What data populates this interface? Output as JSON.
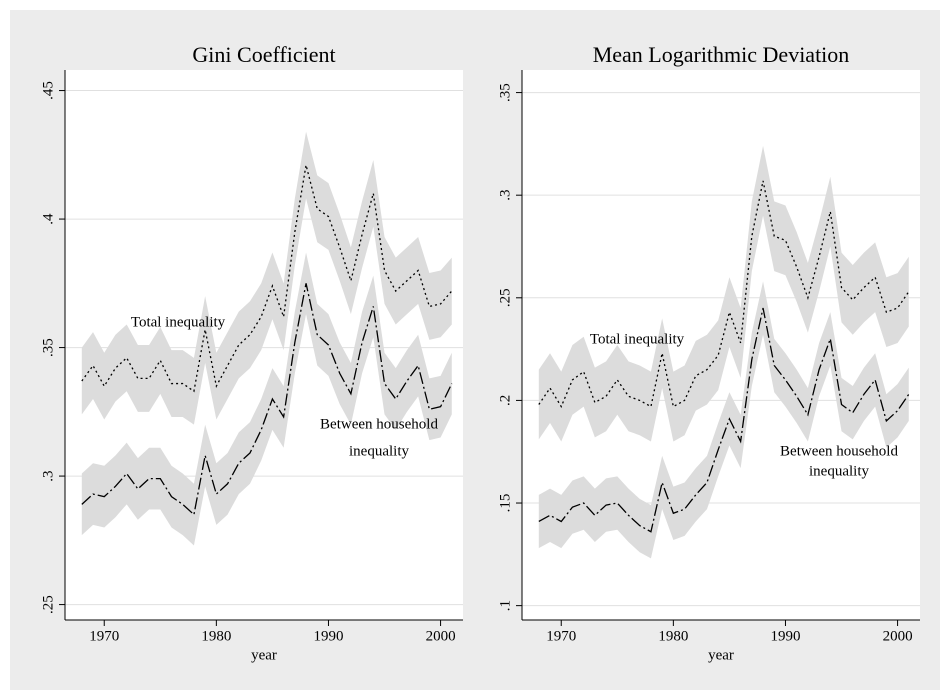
{
  "chart_data": [
    {
      "type": "line",
      "title": "Gini Coefficient",
      "x_label": "year",
      "x": [
        1968,
        1969,
        1970,
        1971,
        1972,
        1973,
        1974,
        1975,
        1976,
        1977,
        1978,
        1979,
        1980,
        1981,
        1982,
        1983,
        1984,
        1985,
        1986,
        1987,
        1988,
        1989,
        1990,
        1991,
        1992,
        1993,
        1994,
        1995,
        1996,
        1997,
        1998,
        1999,
        2000,
        2001
      ],
      "xlim": [
        1966.5,
        2002
      ],
      "xticks": [
        1970,
        1980,
        1990,
        2000
      ],
      "ylim": [
        0.244,
        0.458
      ],
      "yticks": [
        {
          "value": 0.25,
          "label": ".25"
        },
        {
          "value": 0.3,
          "label": ".3"
        },
        {
          "value": 0.35,
          "label": ".35"
        },
        {
          "value": 0.4,
          "label": ".4"
        },
        {
          "value": 0.45,
          "label": ".45"
        }
      ],
      "grid": true,
      "band_color": "#dcdcdc",
      "line_color": "#000000",
      "series": [
        {
          "dash": "2,3",
          "error": 0.013,
          "values": [
            0.337,
            0.343,
            0.335,
            0.342,
            0.346,
            0.338,
            0.338,
            0.345,
            0.336,
            0.336,
            0.333,
            0.357,
            0.335,
            0.343,
            0.351,
            0.355,
            0.362,
            0.374,
            0.362,
            0.395,
            0.421,
            0.404,
            0.401,
            0.389,
            0.376,
            0.394,
            0.41,
            0.38,
            0.372,
            0.376,
            0.38,
            0.366,
            0.367,
            0.372
          ]
        },
        {
          "dash": "12,3,2,3",
          "error": 0.012,
          "values": [
            0.289,
            0.293,
            0.292,
            0.296,
            0.301,
            0.295,
            0.299,
            0.299,
            0.292,
            0.289,
            0.285,
            0.308,
            0.293,
            0.297,
            0.305,
            0.309,
            0.318,
            0.33,
            0.323,
            0.352,
            0.375,
            0.355,
            0.351,
            0.34,
            0.332,
            0.352,
            0.366,
            0.336,
            0.33,
            0.337,
            0.343,
            0.326,
            0.327,
            0.336
          ]
        }
      ],
      "annotations": [
        {
          "lines": [
            "Total inequality"
          ]
        },
        {
          "lines": [
            "Between household",
            "inequality"
          ]
        }
      ]
    },
    {
      "type": "line",
      "title": "Mean Logarithmic Deviation",
      "x_label": "year",
      "x": [
        1968,
        1969,
        1970,
        1971,
        1972,
        1973,
        1974,
        1975,
        1976,
        1977,
        1978,
        1979,
        1980,
        1981,
        1982,
        1983,
        1984,
        1985,
        1986,
        1987,
        1988,
        1989,
        1990,
        1991,
        1992,
        1993,
        1994,
        1995,
        1996,
        1997,
        1998,
        1999,
        2000,
        2001
      ],
      "xlim": [
        1966.5,
        2002
      ],
      "xticks": [
        1970,
        1980,
        1990,
        2000
      ],
      "ylim": [
        0.093,
        0.361
      ],
      "yticks": [
        {
          "value": 0.1,
          "label": ".1"
        },
        {
          "value": 0.15,
          "label": ".15"
        },
        {
          "value": 0.2,
          "label": ".2"
        },
        {
          "value": 0.25,
          "label": ".25"
        },
        {
          "value": 0.3,
          "label": ".3"
        },
        {
          "value": 0.35,
          "label": ".35"
        }
      ],
      "grid": true,
      "band_color": "#dcdcdc",
      "line_color": "#000000",
      "series": [
        {
          "dash": "2,3",
          "error": 0.017,
          "values": [
            0.198,
            0.206,
            0.197,
            0.21,
            0.214,
            0.199,
            0.202,
            0.21,
            0.202,
            0.2,
            0.197,
            0.223,
            0.197,
            0.2,
            0.212,
            0.215,
            0.222,
            0.243,
            0.228,
            0.28,
            0.307,
            0.28,
            0.278,
            0.265,
            0.25,
            0.27,
            0.292,
            0.255,
            0.249,
            0.255,
            0.26,
            0.243,
            0.245,
            0.253
          ]
        },
        {
          "dash": "12,3,2,3",
          "error": 0.013,
          "values": [
            0.141,
            0.144,
            0.141,
            0.148,
            0.15,
            0.144,
            0.149,
            0.15,
            0.144,
            0.139,
            0.136,
            0.16,
            0.145,
            0.147,
            0.154,
            0.16,
            0.176,
            0.191,
            0.18,
            0.22,
            0.245,
            0.217,
            0.21,
            0.202,
            0.193,
            0.215,
            0.23,
            0.198,
            0.194,
            0.203,
            0.21,
            0.19,
            0.195,
            0.203
          ]
        }
      ],
      "annotations": [
        {
          "lines": [
            "Total inequality"
          ]
        },
        {
          "lines": [
            "Between household",
            "inequality"
          ]
        }
      ]
    }
  ]
}
